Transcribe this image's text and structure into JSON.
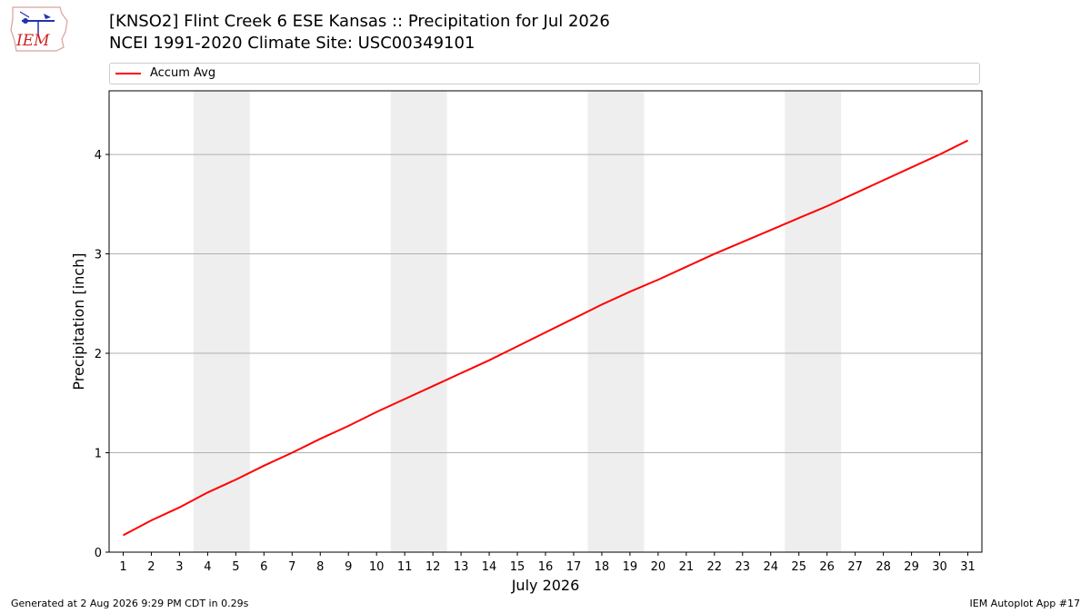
{
  "header": {
    "logo_text": "IEM",
    "title_line1": "[KNSO2] Flint Creek 6 ESE Kansas :: Precipitation for Jul 2026",
    "title_line2": "NCEI 1991-2020 Climate Site: USC00349101"
  },
  "footer": {
    "left": "Generated at 2 Aug 2026 9:29 PM CDT in 0.29s",
    "right": "IEM Autoplot App #17"
  },
  "colors": {
    "line": "#ff0000",
    "weekend_band": "#eeeeee",
    "grid": "#b0b0b0"
  },
  "chart_data": {
    "type": "line",
    "title": "[KNSO2] Flint Creek 6 ESE Kansas :: Precipitation for Jul 2026",
    "subtitle": "NCEI 1991-2020 Climate Site: USC00349101",
    "xlabel": "July 2026",
    "ylabel": "Precipitation [inch]",
    "xlim": [
      0.5,
      31.5
    ],
    "ylim": [
      0,
      4.64
    ],
    "x": [
      1,
      2,
      3,
      4,
      5,
      6,
      7,
      8,
      9,
      10,
      11,
      12,
      13,
      14,
      15,
      16,
      17,
      18,
      19,
      20,
      21,
      22,
      23,
      24,
      25,
      26,
      27,
      28,
      29,
      30,
      31
    ],
    "x_tick_labels": [
      "1",
      "2",
      "3",
      "4",
      "5",
      "6",
      "7",
      "8",
      "9",
      "10",
      "11",
      "12",
      "13",
      "14",
      "15",
      "16",
      "17",
      "18",
      "19",
      "20",
      "21",
      "22",
      "23",
      "24",
      "25",
      "26",
      "27",
      "28",
      "29",
      "30",
      "31"
    ],
    "y_ticks": [
      0,
      1,
      2,
      3,
      4
    ],
    "grid": "horizontal",
    "legend_position": "top",
    "shaded_x_ranges": [
      [
        3.5,
        5.5
      ],
      [
        10.5,
        12.5
      ],
      [
        17.5,
        19.5
      ],
      [
        24.5,
        26.5
      ]
    ],
    "series": [
      {
        "name": "Accum Avg",
        "color": "#ff0000",
        "values": [
          0.17,
          0.32,
          0.45,
          0.6,
          0.73,
          0.87,
          1.0,
          1.14,
          1.27,
          1.41,
          1.54,
          1.67,
          1.8,
          1.93,
          2.07,
          2.21,
          2.35,
          2.49,
          2.62,
          2.74,
          2.87,
          3.0,
          3.12,
          3.24,
          3.36,
          3.48,
          3.61,
          3.74,
          3.87,
          4.0,
          4.14
        ]
      }
    ]
  }
}
